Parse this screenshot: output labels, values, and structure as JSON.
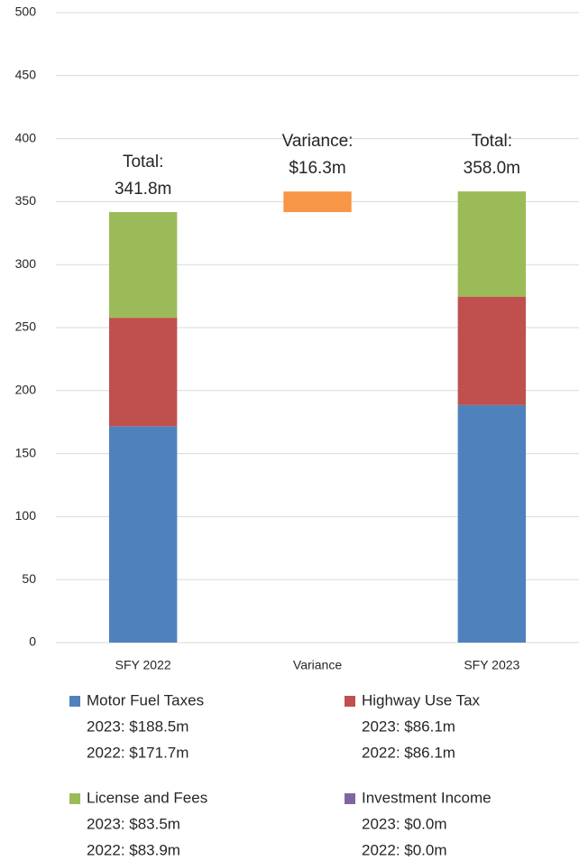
{
  "chart_data": {
    "type": "stacked-waterfall",
    "categories": [
      "SFY 2022",
      "Variance",
      "SFY 2023"
    ],
    "series": [
      {
        "name": "Motor Fuel Taxes",
        "color": "#4f81bd",
        "values": [
          171.7,
          null,
          188.5
        ],
        "legend_lines": [
          "2023: $188.5m",
          "2022: $171.7m"
        ]
      },
      {
        "name": "Highway Use Tax",
        "color": "#c0504d",
        "values": [
          86.1,
          null,
          86.1
        ],
        "legend_lines": [
          "2023: $86.1m",
          "2022: $86.1m"
        ]
      },
      {
        "name": "License and Fees",
        "color": "#9bbb59",
        "values": [
          83.9,
          null,
          83.5
        ],
        "legend_lines": [
          "2023: $83.5m",
          "2022: $83.9m"
        ]
      },
      {
        "name": "Investment Income",
        "color": "#8064a2",
        "values": [
          0,
          null,
          0
        ],
        "legend_lines": [
          "2023: $0.0m",
          "2022: $0.0m"
        ]
      }
    ],
    "variance_value": 16.3,
    "variance_color": "#f79646",
    "annotations": [
      [
        "Total:",
        "341.8m"
      ],
      [
        "Variance:",
        "$16.3m"
      ],
      [
        "Total:",
        "358.0m"
      ]
    ],
    "ylim": [
      0,
      500
    ],
    "yticks": [
      0,
      50,
      100,
      150,
      200,
      250,
      300,
      350,
      400,
      450,
      500
    ],
    "grid": true
  }
}
